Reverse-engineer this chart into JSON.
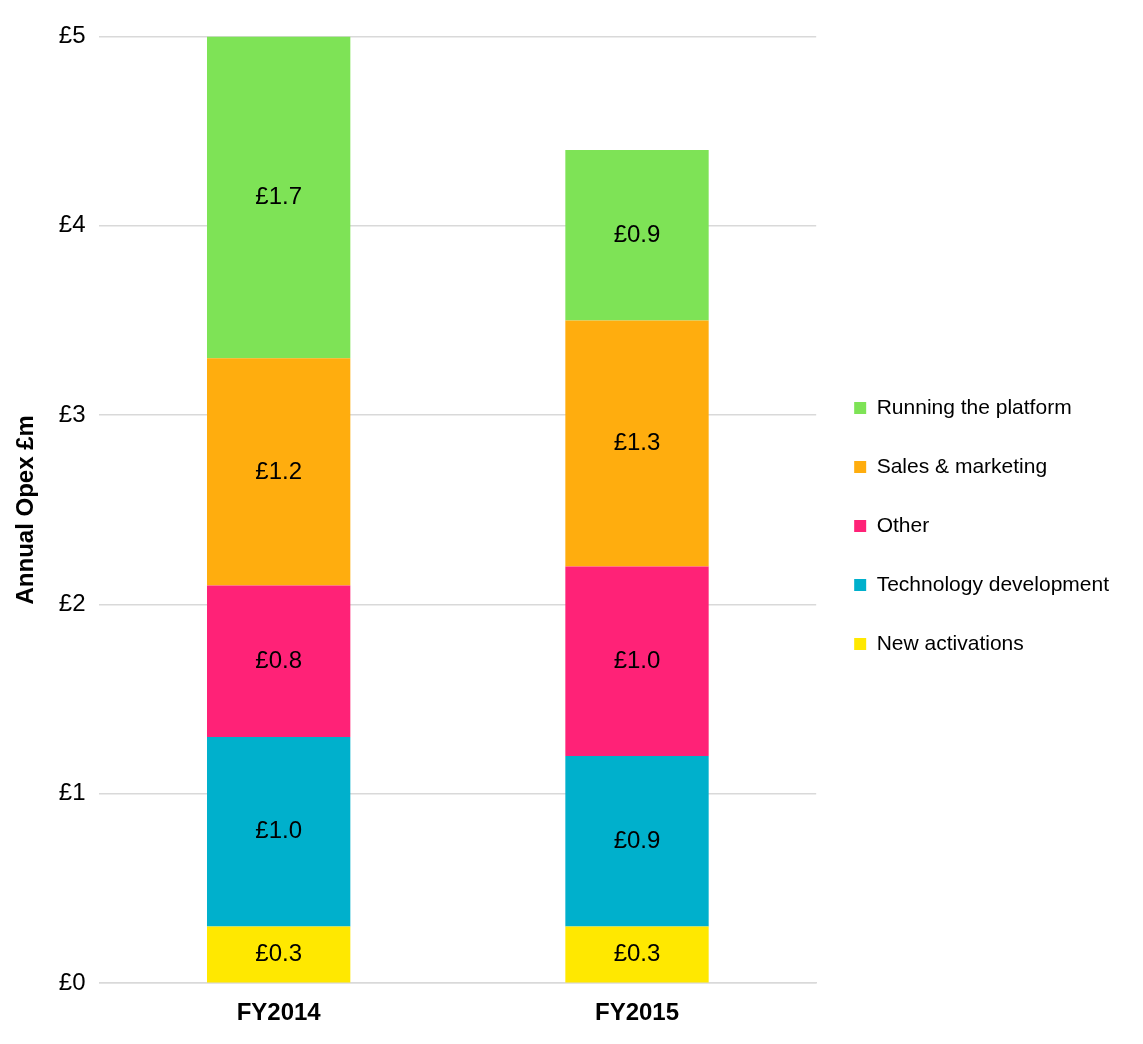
{
  "chart_data": {
    "type": "bar",
    "stacked": true,
    "ylabel": "Annual Opex £m",
    "categories": [
      "FY2014",
      "FY2015"
    ],
    "series": [
      {
        "name": "New activations",
        "color": "#ffe800",
        "values": [
          0.3,
          0.3
        ],
        "value_labels": [
          "£0.3",
          "£0.3"
        ]
      },
      {
        "name": "Technology development",
        "color": "#00b0cc",
        "values": [
          1.0,
          0.9
        ],
        "value_labels": [
          "£1.0",
          "£0.9"
        ]
      },
      {
        "name": "Other",
        "color": "#ff2277",
        "values": [
          0.8,
          1.0
        ],
        "value_labels": [
          "£0.8",
          "£1.0"
        ]
      },
      {
        "name": "Sales & marketing",
        "color": "#ffad0e",
        "values": [
          1.2,
          1.3
        ],
        "value_labels": [
          "£1.2",
          "£1.3"
        ]
      },
      {
        "name": "Running the platform",
        "color": "#7ee356",
        "values": [
          1.7,
          0.9
        ],
        "value_labels": [
          "£1.7",
          "£0.9"
        ]
      }
    ],
    "ylim": [
      0,
      5
    ],
    "yticks": [
      {
        "value": 0,
        "label": "£0"
      },
      {
        "value": 1,
        "label": "£1"
      },
      {
        "value": 2,
        "label": "£2"
      },
      {
        "value": 3,
        "label": "£3"
      },
      {
        "value": 4,
        "label": "£4"
      },
      {
        "value": 5,
        "label": "£5"
      }
    ],
    "grid": "y",
    "legend": "right"
  }
}
